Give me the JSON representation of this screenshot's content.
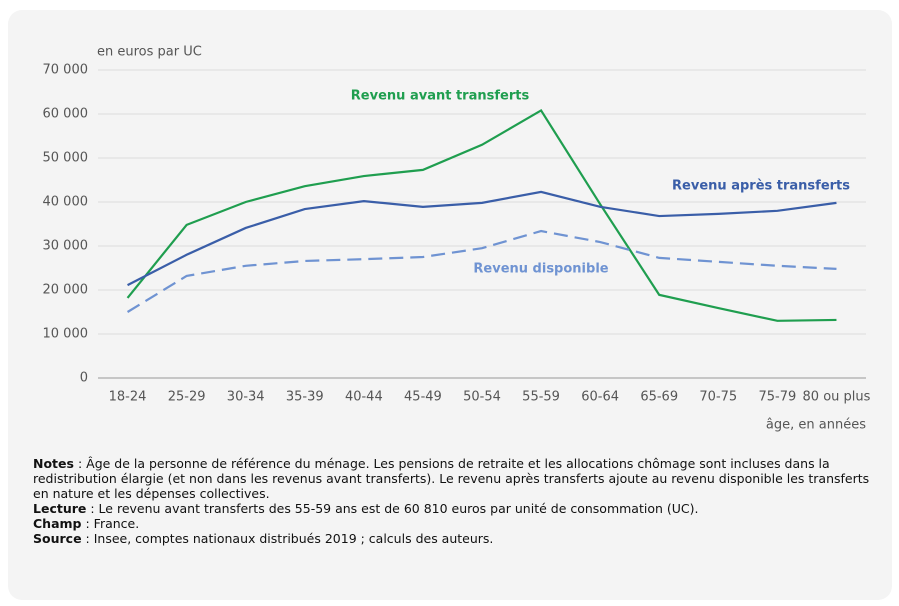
{
  "chart_data": {
    "type": "line",
    "axis_label_y": "en euros par UC",
    "axis_label_x": "âge, en années",
    "categories": [
      "18-24",
      "25-29",
      "30-34",
      "35-39",
      "40-44",
      "45-49",
      "50-54",
      "55-59",
      "60-64",
      "65-69",
      "70-75",
      "75-79",
      "80 ou plus"
    ],
    "series": [
      {
        "name": "Revenu avant transferts",
        "color": "#1f9e4f",
        "dash": false,
        "values": [
          18200,
          34800,
          40000,
          43600,
          45900,
          47300,
          53000,
          60810,
          39500,
          18900,
          15900,
          13000,
          13200
        ]
      },
      {
        "name": "Revenu après transferts",
        "color": "#3a5ea8",
        "dash": false,
        "values": [
          21100,
          28000,
          34100,
          38400,
          40200,
          38900,
          39800,
          42300,
          38900,
          36800,
          37300,
          38000,
          39800
        ]
      },
      {
        "name": "Revenu disponible",
        "color": "#6f93d2",
        "dash": true,
        "values": [
          15000,
          23200,
          25500,
          26600,
          27000,
          27500,
          29500,
          33400,
          30900,
          27300,
          26400,
          25500,
          24800
        ]
      }
    ],
    "ylim": [
      0,
      70000
    ],
    "yticks": [
      0,
      {
        "value": 10000,
        "label": "10 000"
      },
      {
        "value": 20000,
        "label": "20 000"
      },
      {
        "value": 30000,
        "label": "30 000"
      },
      {
        "value": 40000,
        "label": "40 000"
      },
      {
        "value": 50000,
        "label": "50 000"
      },
      {
        "value": 60000,
        "label": "60 000"
      },
      {
        "value": 70000,
        "label": "70 000"
      }
    ],
    "grid": true
  },
  "notes": [
    {
      "label": "Notes",
      "text": ": Âge de la personne de référence du ménage. Les pensions de retraite et les allocations chômage sont incluses dans la redistribution élargie (et non dans les revenus avant transferts). Le revenu après transferts ajoute au revenu disponible les transferts en nature et les dépenses collectives."
    },
    {
      "label": "Lecture",
      "text": ": Le revenu avant transferts des 55-59 ans est de 60 810 euros par unité de consommation (UC)."
    },
    {
      "label": "Champ",
      "text": ": France."
    },
    {
      "label": "Source",
      "text": ": Insee, comptes nationaux distribués 2019 ; calculs des auteurs."
    }
  ]
}
